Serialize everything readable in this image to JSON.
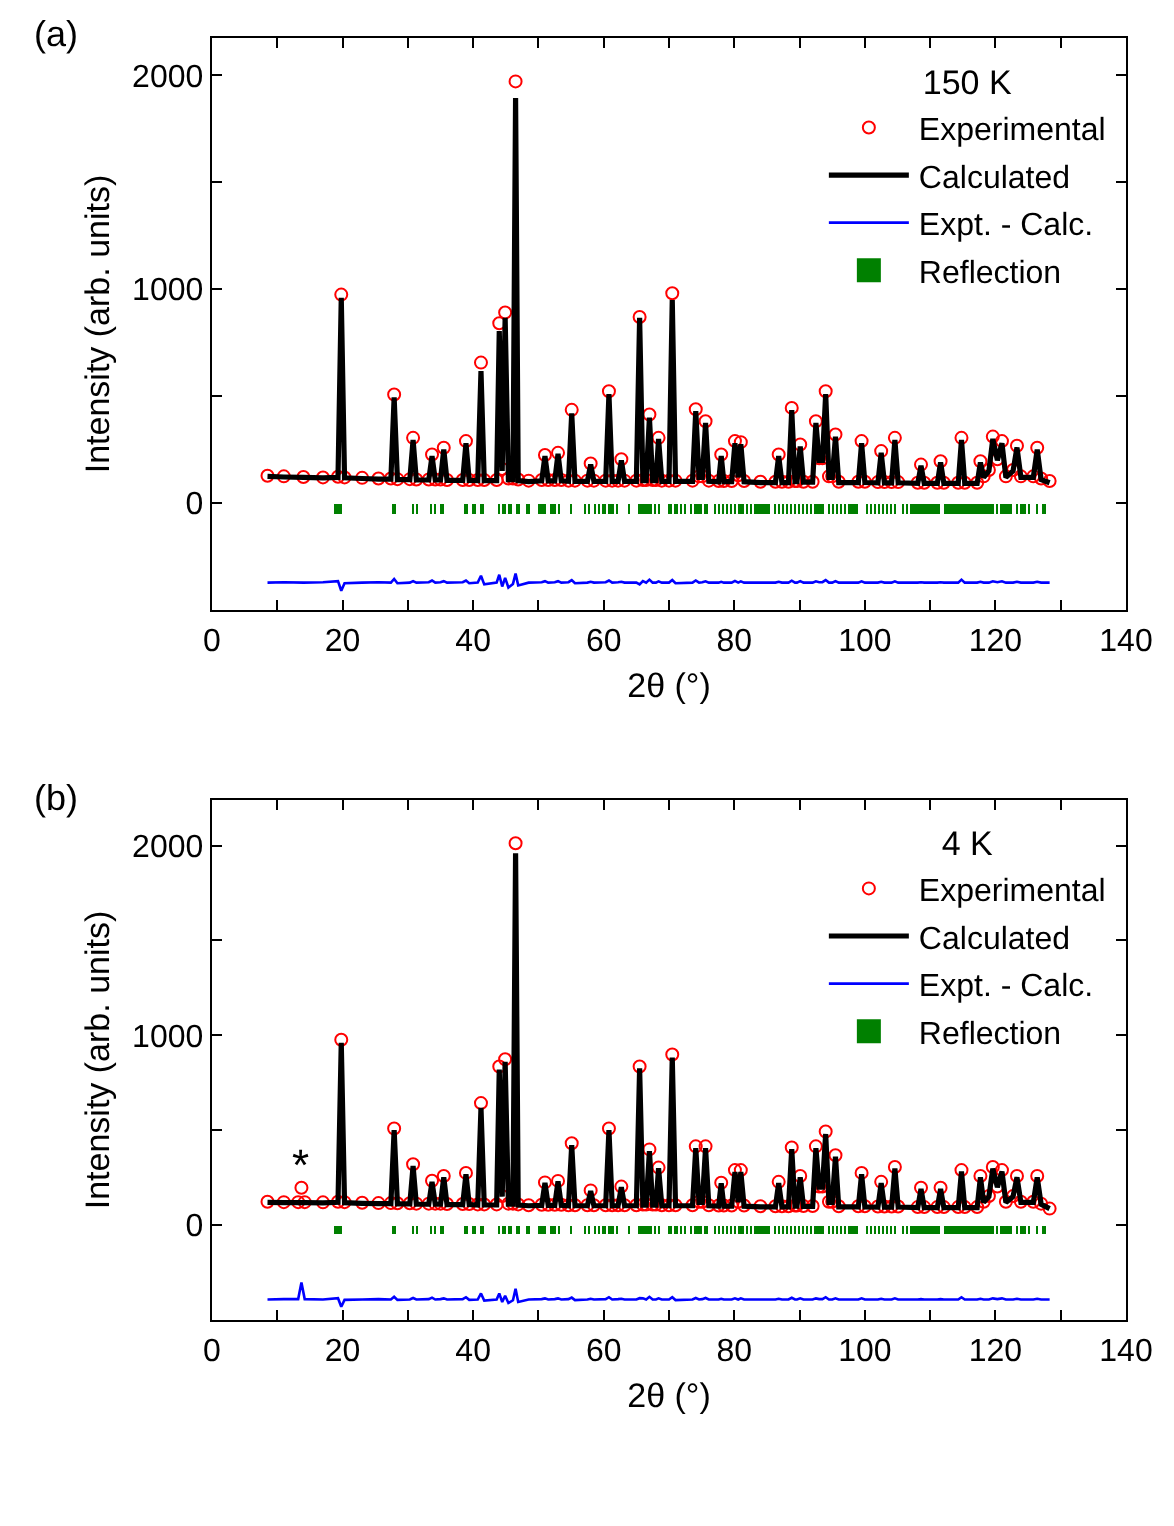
{
  "chart_data": [
    {
      "type": "line",
      "annotations": [
        "(a)"
      ],
      "legend_title": "150 K",
      "legend": "top right",
      "xlabel": "2θ (°)",
      "ylabel": "Intensity (arb. units)",
      "xlim": [
        0,
        140
      ],
      "ylim": [
        -500,
        2175
      ],
      "xticks": [
        0,
        {
          "value": 10,
          "label": null
        },
        20,
        {
          "value": 30,
          "label": null
        },
        40,
        {
          "value": 50,
          "label": null
        },
        60,
        {
          "value": 70,
          "label": null
        },
        80,
        {
          "value": 90,
          "label": null
        },
        100,
        {
          "value": 110,
          "label": null
        },
        120,
        {
          "value": 130,
          "label": null
        },
        140
      ],
      "yticks": [
        0,
        1000,
        2000
      ],
      "x": [
        8.5,
        11,
        14,
        17,
        19.3,
        19.8,
        20.3,
        23,
        25.5,
        27.4,
        27.9,
        28.4,
        30.3,
        30.8,
        31.3,
        33.2,
        33.7,
        34.2,
        35.0,
        35.5,
        36.0,
        38.4,
        38.9,
        39.4,
        40.7,
        41.2,
        41.7,
        43.6,
        44.0,
        44.45,
        44.9,
        45.4,
        46.1,
        46.5,
        46.9,
        48.5,
        50.5,
        51.0,
        51.5,
        52.5,
        53.0,
        53.5,
        54.6,
        55.1,
        55.6,
        57.5,
        58.0,
        58.5,
        60.3,
        60.8,
        61.3,
        62.2,
        62.7,
        63.2,
        65.0,
        65.5,
        66.0,
        66.5,
        67.0,
        67.5,
        68.0,
        68.4,
        68.9,
        70.0,
        70.5,
        71.0,
        73.6,
        74.1,
        74.6,
        75.1,
        75.6,
        76.1,
        77.6,
        78.0,
        78.4,
        79.6,
        80.1,
        80.6,
        81.0,
        81.5,
        84.0,
        86.3,
        86.8,
        87.3,
        88.3,
        88.8,
        89.3,
        89.6,
        90.1,
        90.6,
        92.0,
        92.5,
        93.0,
        93.5,
        94.0,
        94.5,
        95.0,
        95.5,
        96.0,
        99.0,
        99.5,
        100.0,
        102.0,
        102.5,
        103.0,
        104.1,
        104.6,
        105.1,
        108.1,
        108.6,
        109.1,
        111.1,
        111.6,
        112.1,
        114.3,
        114.8,
        115.3,
        117.2,
        117.7,
        118.2,
        119.0,
        119.6,
        120.3,
        121.0,
        121.6,
        122.7,
        123.3,
        123.9,
        125.8,
        126.4,
        127.0,
        128.3
      ],
      "series": [
        {
          "name": "Experimental",
          "type": "scatter",
          "marker": "circle",
          "color": "#ff0000",
          "values": [
            128,
            125,
            122,
            120,
            123,
            975,
            120,
            118,
            115,
            115,
            508,
            112,
            112,
            305,
            110,
            110,
            227,
            110,
            110,
            259,
            108,
            108,
            290,
            108,
            108,
            657,
            108,
            108,
            841,
            160,
            891,
            115,
            115,
            1972,
            110,
            105,
            108,
            225,
            108,
            108,
            235,
            108,
            105,
            436,
            105,
            105,
            185,
            105,
            105,
            523,
            105,
            105,
            205,
            105,
            105,
            870,
            108,
            108,
            414,
            108,
            108,
            305,
            105,
            105,
            981,
            105,
            105,
            439,
            125,
            125,
            383,
            105,
            103,
            227,
            103,
            103,
            290,
            130,
            285,
            103,
            100,
            100,
            227,
            100,
            100,
            445,
            103,
            103,
            274,
            100,
            100,
            383,
            210,
            210,
            523,
            125,
            125,
            321,
            100,
            100,
            290,
            100,
            98,
            243,
            98,
            98,
            305,
            98,
            95,
            180,
            95,
            95,
            196,
            95,
            95,
            305,
            95,
            95,
            196,
            125,
            155,
            311,
            205,
            290,
            125,
            155,
            268,
            125,
            125,
            259,
            115,
            103
          ]
        },
        {
          "name": "Calculated",
          "color": "#000000",
          "values": [
            125,
            122,
            120,
            118,
            120,
            960,
            118,
            115,
            112,
            112,
            495,
            110,
            110,
            295,
            108,
            108,
            220,
            108,
            108,
            250,
            106,
            106,
            280,
            106,
            105,
            617,
            105,
            105,
            804,
            150,
            866,
            110,
            110,
            1894,
            105,
            100,
            104,
            220,
            104,
            104,
            230,
            104,
            102,
            420,
            102,
            102,
            180,
            102,
            102,
            510,
            102,
            102,
            200,
            102,
            102,
            866,
            105,
            105,
            400,
            105,
            105,
            300,
            102,
            102,
            950,
            102,
            102,
            430,
            120,
            120,
            375,
            102,
            100,
            220,
            100,
            100,
            280,
            120,
            275,
            100,
            96,
            96,
            220,
            96,
            96,
            435,
            100,
            100,
            265,
            98,
            98,
            375,
            200,
            200,
            510,
            120,
            120,
            310,
            96,
            96,
            280,
            96,
            95,
            235,
            95,
            95,
            295,
            95,
            92,
            175,
            92,
            92,
            190,
            92,
            92,
            295,
            92,
            92,
            190,
            120,
            150,
            300,
            200,
            280,
            120,
            150,
            260,
            120,
            120,
            250,
            110,
            95
          ]
        },
        {
          "name": "Expt. - Calc.",
          "color": "#0000ff",
          "values": [
            -372,
            -370,
            -372,
            -370,
            -365,
            -410,
            -375,
            -372,
            -370,
            -372,
            -355,
            -375,
            -372,
            -365,
            -372,
            -370,
            -362,
            -372,
            -370,
            -365,
            -372,
            -370,
            -362,
            -375,
            -372,
            -340,
            -380,
            -372,
            -335,
            -390,
            -350,
            -395,
            -378,
            -330,
            -385,
            -372,
            -370,
            -365,
            -372,
            -370,
            -365,
            -372,
            -370,
            -360,
            -375,
            -372,
            -368,
            -372,
            -370,
            -362,
            -372,
            -370,
            -368,
            -372,
            -372,
            -380,
            -365,
            -372,
            -358,
            -372,
            -372,
            -366,
            -372,
            -372,
            -360,
            -375,
            -372,
            -362,
            -372,
            -370,
            -366,
            -372,
            -372,
            -368,
            -372,
            -372,
            -364,
            -372,
            -366,
            -372,
            -372,
            -372,
            -368,
            -372,
            -372,
            -363,
            -372,
            -372,
            -365,
            -372,
            -372,
            -366,
            -370,
            -370,
            -360,
            -372,
            -372,
            -365,
            -372,
            -372,
            -366,
            -372,
            -372,
            -368,
            -372,
            -372,
            -366,
            -372,
            -372,
            -370,
            -372,
            -372,
            -370,
            -372,
            -372,
            -358,
            -372,
            -372,
            -368,
            -372,
            -372,
            -366,
            -370,
            -366,
            -372,
            -372,
            -368,
            -372,
            -372,
            -368,
            -372,
            -372
          ]
        },
        {
          "name": "Reflection",
          "type": "bar",
          "color": "#008000",
          "x": [
            18.8,
            19.3,
            19.8,
            27.8,
            30.8,
            31.4,
            33.5,
            34.1,
            35.3,
            38.9,
            40.2,
            41.4,
            44.0,
            44.7,
            45.7,
            46.9,
            48.4,
            50.3,
            50.8,
            52.1,
            52.6,
            53.2,
            55.0,
            57.2,
            57.7,
            58.6,
            59.3,
            60.0,
            60.8,
            61.3,
            62.0,
            63.9,
            65.4,
            65.9,
            66.5,
            67.1,
            67.9,
            68.4,
            70.2,
            71.0,
            71.8,
            72.5,
            73.3,
            74.1,
            74.8,
            75.6,
            77.0,
            77.6,
            78.2,
            78.9,
            79.5,
            80.1,
            80.8,
            81.4,
            82.0,
            82.6,
            83.3,
            83.9,
            84.5,
            85.1,
            86.3,
            86.9,
            87.5,
            88.1,
            88.7,
            89.3,
            89.9,
            90.5,
            91.1,
            91.7,
            92.3,
            92.9,
            93.5,
            94.5,
            95.1,
            95.7,
            96.3,
            96.9,
            97.5,
            98.1,
            98.7,
            100.4,
            101.0,
            101.6,
            102.2,
            102.8,
            103.4,
            104.0,
            104.6,
            105.8,
            106.4,
            107.0,
            107.6,
            108.2,
            108.8,
            109.4,
            110.0,
            110.6,
            111.2,
            112.5,
            113.1,
            113.7,
            114.3,
            114.9,
            115.5,
            116.1,
            116.7,
            117.3,
            117.9,
            118.5,
            119.1,
            119.7,
            120.3,
            121.0,
            121.6,
            122.2,
            123.3,
            124.0,
            124.6,
            125.2,
            126.4,
            127.5
          ],
          "base": [
            -50,
            -50,
            -50,
            -50,
            -50,
            -50,
            -50,
            -50,
            -50,
            -50,
            -50,
            -50,
            -50,
            -50,
            -50,
            -50,
            -50,
            -50,
            -50,
            -50,
            -50,
            -50,
            -50,
            -50,
            -50,
            -50,
            -50,
            -50,
            -50,
            -50,
            -50,
            -50,
            -50,
            -50,
            -50,
            -50,
            -50,
            -50,
            -50,
            -50,
            -50,
            -50,
            -50,
            -50,
            -50,
            -50,
            -50,
            -50,
            -50,
            -50,
            -50,
            -50,
            -50,
            -50,
            -50,
            -50,
            -50,
            -50,
            -50,
            -50,
            -50,
            -50,
            -50,
            -50,
            -50,
            -50,
            -50,
            -50,
            -50,
            -50,
            -50,
            -50,
            -50,
            -50,
            -50,
            -50,
            -50,
            -50,
            -50,
            -50,
            -50,
            -50,
            -50,
            -50,
            -50,
            -50,
            -50,
            -50,
            -50,
            -50,
            -50,
            -50,
            -50,
            -50,
            -50,
            -50,
            -50,
            -50,
            -50,
            -50,
            -50,
            -50,
            -50,
            -50,
            -50,
            -50,
            -50,
            -50,
            -50,
            -50,
            -50,
            -50,
            -50,
            -50,
            -50,
            -50,
            -50,
            -50,
            -50,
            -50,
            -50,
            -50
          ],
          "values": [
            50,
            50,
            50,
            50,
            50,
            50,
            50,
            50,
            50,
            50,
            50,
            50,
            50,
            50,
            50,
            50,
            50,
            50,
            50,
            50,
            50,
            50,
            50,
            50,
            50,
            50,
            50,
            50,
            50,
            50,
            50,
            50,
            50,
            50,
            50,
            50,
            50,
            50,
            50,
            50,
            50,
            50,
            50,
            50,
            50,
            50,
            50,
            50,
            50,
            50,
            50,
            50,
            50,
            50,
            50,
            50,
            50,
            50,
            50,
            50,
            50,
            50,
            50,
            50,
            50,
            50,
            50,
            50,
            50,
            50,
            50,
            50,
            50,
            50,
            50,
            50,
            50,
            50,
            50,
            50,
            50,
            50,
            50,
            50,
            50,
            50,
            50,
            50,
            50,
            50,
            50,
            50,
            50,
            50,
            50,
            50,
            50,
            50,
            50,
            50,
            50,
            50,
            50,
            50,
            50,
            50,
            50,
            50,
            50,
            50,
            50,
            50,
            50,
            50,
            50,
            50,
            50,
            50,
            50,
            50,
            50,
            50
          ]
        }
      ]
    },
    {
      "type": "line",
      "annotations": [
        "(b)",
        "*"
      ],
      "legend_title": "4 K",
      "legend": "top right",
      "xlabel": "2θ (°)",
      "ylabel": "Intensity (arb. units)",
      "xlim": [
        0,
        140
      ],
      "ylim": [
        -500,
        2240
      ],
      "xticks": [
        0,
        {
          "value": 10,
          "label": null
        },
        20,
        {
          "value": 30,
          "label": null
        },
        40,
        {
          "value": 50,
          "label": null
        },
        60,
        {
          "value": 70,
          "label": null
        },
        80,
        {
          "value": 90,
          "label": null
        },
        100,
        {
          "value": 110,
          "label": null
        },
        120,
        {
          "value": 130,
          "label": null
        },
        140
      ],
      "yticks": [
        0,
        1000,
        2000
      ],
      "x": [
        8.5,
        11,
        13.2,
        13.7,
        14.2,
        17,
        19.3,
        19.8,
        20.3,
        23,
        25.5,
        27.4,
        27.9,
        28.4,
        30.3,
        30.8,
        31.3,
        33.2,
        33.7,
        34.2,
        35.0,
        35.5,
        36.0,
        38.4,
        38.9,
        39.4,
        40.7,
        41.2,
        41.7,
        43.6,
        44.0,
        44.45,
        44.9,
        45.4,
        46.1,
        46.5,
        46.9,
        48.5,
        50.5,
        51.0,
        51.5,
        52.5,
        53.0,
        53.5,
        54.6,
        55.1,
        55.6,
        57.5,
        58.0,
        58.5,
        60.3,
        60.8,
        61.3,
        62.2,
        62.7,
        63.2,
        65.0,
        65.5,
        66.0,
        66.5,
        67.0,
        67.5,
        68.0,
        68.4,
        68.9,
        70.0,
        70.5,
        71.0,
        73.6,
        74.1,
        74.6,
        75.1,
        75.6,
        76.1,
        77.6,
        78.0,
        78.4,
        79.6,
        80.1,
        80.6,
        81.0,
        81.5,
        84.0,
        86.3,
        86.8,
        87.3,
        88.3,
        88.8,
        89.3,
        89.6,
        90.1,
        90.6,
        92.0,
        92.5,
        93.0,
        93.5,
        94.0,
        94.5,
        95.0,
        95.5,
        96.0,
        99.0,
        99.5,
        100.0,
        102.0,
        102.5,
        103.0,
        104.1,
        104.6,
        105.1,
        108.1,
        108.6,
        109.1,
        111.1,
        111.6,
        112.1,
        114.3,
        114.8,
        115.3,
        117.2,
        117.7,
        118.2,
        119.0,
        119.6,
        120.3,
        121.0,
        121.6,
        122.7,
        123.3,
        123.9,
        125.8,
        126.4,
        127.0,
        128.3
      ],
      "series": [
        {
          "name": "Experimental",
          "type": "scatter",
          "marker": "circle",
          "color": "#ff0000",
          "values": [
            123,
            121,
            121,
            197,
            121,
            120,
            123,
            977,
            121,
            118,
            116,
            116,
            509,
            115,
            115,
            321,
            113,
            113,
            234,
            113,
            113,
            259,
            111,
            111,
            275,
            111,
            109,
            643,
            109,
            109,
            836,
            153,
            874,
            113,
            113,
            2012,
            109,
            105,
            107,
            225,
            107,
            107,
            233,
            107,
            105,
            431,
            105,
            105,
            183,
            105,
            105,
            509,
            105,
            105,
            203,
            105,
            105,
            836,
            108,
            108,
            399,
            108,
            108,
            303,
            105,
            105,
            899,
            105,
            105,
            415,
            123,
            123,
            415,
            105,
            103,
            223,
            103,
            103,
            290,
            123,
            290,
            103,
            99,
            99,
            228,
            99,
            99,
            409,
            103,
            103,
            259,
            101,
            101,
            415,
            203,
            203,
            493,
            123,
            123,
            368,
            99,
            99,
            275,
            99,
            98,
            228,
            98,
            98,
            306,
            98,
            95,
            197,
            95,
            95,
            197,
            95,
            95,
            290,
            95,
            95,
            259,
            123,
            153,
            306,
            203,
            290,
            123,
            153,
            259,
            123,
            123,
            259,
            113,
            87
          ]
        },
        {
          "name": "Calculated",
          "color": "#000000",
          "values": [
            120,
            118,
            118,
            118,
            118,
            117,
            120,
            960,
            118,
            115,
            113,
            113,
            500,
            112,
            112,
            312,
            110,
            110,
            228,
            110,
            110,
            252,
            108,
            108,
            268,
            108,
            106,
            618,
            106,
            106,
            820,
            150,
            860,
            110,
            110,
            1959,
            106,
            102,
            104,
            222,
            104,
            104,
            230,
            104,
            102,
            422,
            102,
            102,
            180,
            102,
            102,
            500,
            102,
            102,
            200,
            102,
            102,
            826,
            105,
            105,
            390,
            105,
            105,
            300,
            102,
            102,
            883,
            102,
            102,
            405,
            120,
            120,
            405,
            102,
            100,
            220,
            100,
            100,
            280,
            120,
            280,
            100,
            96,
            96,
            222,
            96,
            96,
            400,
            100,
            100,
            252,
            98,
            98,
            405,
            200,
            200,
            480,
            120,
            120,
            360,
            96,
            96,
            268,
            96,
            95,
            222,
            95,
            95,
            298,
            95,
            92,
            190,
            92,
            92,
            190,
            92,
            92,
            282,
            92,
            92,
            252,
            120,
            150,
            298,
            200,
            282,
            120,
            150,
            252,
            120,
            120,
            252,
            110,
            87
          ]
        },
        {
          "name": "Expt. - Calc.",
          "color": "#0000ff",
          "values": [
            -392,
            -390,
            -390,
            -303,
            -390,
            -392,
            -385,
            -430,
            -394,
            -392,
            -390,
            -392,
            -378,
            -394,
            -392,
            -384,
            -392,
            -390,
            -382,
            -392,
            -390,
            -386,
            -392,
            -390,
            -380,
            -394,
            -392,
            -360,
            -398,
            -392,
            -360,
            -405,
            -372,
            -410,
            -396,
            -335,
            -405,
            -392,
            -390,
            -386,
            -392,
            -390,
            -386,
            -392,
            -390,
            -382,
            -395,
            -392,
            -388,
            -392,
            -390,
            -380,
            -392,
            -390,
            -388,
            -392,
            -392,
            -385,
            -386,
            -392,
            -378,
            -392,
            -392,
            -386,
            -392,
            -392,
            -380,
            -395,
            -392,
            -384,
            -392,
            -390,
            -384,
            -392,
            -392,
            -388,
            -392,
            -392,
            -386,
            -392,
            -386,
            -392,
            -392,
            -392,
            -388,
            -392,
            -392,
            -383,
            -392,
            -392,
            -386,
            -392,
            -392,
            -386,
            -390,
            -390,
            -380,
            -392,
            -392,
            -386,
            -392,
            -392,
            -386,
            -392,
            -392,
            -388,
            -392,
            -392,
            -386,
            -392,
            -392,
            -390,
            -392,
            -392,
            -390,
            -392,
            -392,
            -380,
            -392,
            -392,
            -388,
            -392,
            -392,
            -386,
            -390,
            -386,
            -392,
            -392,
            -388,
            -392,
            -392,
            -388,
            -392,
            -392
          ]
        },
        {
          "name": "Reflection",
          "type": "bar",
          "color": "#008000",
          "x": [
            18.8,
            19.3,
            19.8,
            27.8,
            30.8,
            31.4,
            33.5,
            34.1,
            35.3,
            38.9,
            40.2,
            41.4,
            44.0,
            44.7,
            45.7,
            46.9,
            48.4,
            50.3,
            50.8,
            52.1,
            52.6,
            53.2,
            55.0,
            57.2,
            57.7,
            58.6,
            59.3,
            60.0,
            60.8,
            61.3,
            62.0,
            63.9,
            65.4,
            65.9,
            66.5,
            67.1,
            67.9,
            68.4,
            70.2,
            71.0,
            71.8,
            72.5,
            73.3,
            74.1,
            74.8,
            75.6,
            77.0,
            77.6,
            78.2,
            78.9,
            79.5,
            80.1,
            80.8,
            81.4,
            82.0,
            82.6,
            83.3,
            83.9,
            84.5,
            85.1,
            86.3,
            86.9,
            87.5,
            88.1,
            88.7,
            89.3,
            89.9,
            90.5,
            91.1,
            91.7,
            92.3,
            92.9,
            93.5,
            94.5,
            95.1,
            95.7,
            96.3,
            96.9,
            97.5,
            98.1,
            98.7,
            100.4,
            101.0,
            101.6,
            102.2,
            102.8,
            103.4,
            104.0,
            104.6,
            105.8,
            106.4,
            107.0,
            107.6,
            108.2,
            108.8,
            109.4,
            110.0,
            110.6,
            111.2,
            112.5,
            113.1,
            113.7,
            114.3,
            114.9,
            115.5,
            116.1,
            116.7,
            117.3,
            117.9,
            118.5,
            119.1,
            119.7,
            120.3,
            121.0,
            121.6,
            122.2,
            123.3,
            124.0,
            124.6,
            125.2,
            126.4,
            127.5
          ],
          "base": [
            -50,
            -50,
            -50,
            -50,
            -50,
            -50,
            -50,
            -50,
            -50,
            -50,
            -50,
            -50,
            -50,
            -50,
            -50,
            -50,
            -50,
            -50,
            -50,
            -50,
            -50,
            -50,
            -50,
            -50,
            -50,
            -50,
            -50,
            -50,
            -50,
            -50,
            -50,
            -50,
            -50,
            -50,
            -50,
            -50,
            -50,
            -50,
            -50,
            -50,
            -50,
            -50,
            -50,
            -50,
            -50,
            -50,
            -50,
            -50,
            -50,
            -50,
            -50,
            -50,
            -50,
            -50,
            -50,
            -50,
            -50,
            -50,
            -50,
            -50,
            -50,
            -50,
            -50,
            -50,
            -50,
            -50,
            -50,
            -50,
            -50,
            -50,
            -50,
            -50,
            -50,
            -50,
            -50,
            -50,
            -50,
            -50,
            -50,
            -50,
            -50,
            -50,
            -50,
            -50,
            -50,
            -50,
            -50,
            -50,
            -50,
            -50,
            -50,
            -50,
            -50,
            -50,
            -50,
            -50,
            -50,
            -50,
            -50,
            -50,
            -50,
            -50,
            -50,
            -50,
            -50,
            -50,
            -50,
            -50,
            -50,
            -50,
            -50,
            -50,
            -50,
            -50,
            -50,
            -50,
            -50,
            -50,
            -50,
            -50,
            -50,
            -50
          ],
          "values": [
            50,
            50,
            50,
            50,
            50,
            50,
            50,
            50,
            50,
            50,
            50,
            50,
            50,
            50,
            50,
            50,
            50,
            50,
            50,
            50,
            50,
            50,
            50,
            50,
            50,
            50,
            50,
            50,
            50,
            50,
            50,
            50,
            50,
            50,
            50,
            50,
            50,
            50,
            50,
            50,
            50,
            50,
            50,
            50,
            50,
            50,
            50,
            50,
            50,
            50,
            50,
            50,
            50,
            50,
            50,
            50,
            50,
            50,
            50,
            50,
            50,
            50,
            50,
            50,
            50,
            50,
            50,
            50,
            50,
            50,
            50,
            50,
            50,
            50,
            50,
            50,
            50,
            50,
            50,
            50,
            50,
            50,
            50,
            50,
            50,
            50,
            50,
            50,
            50,
            50,
            50,
            50,
            50,
            50,
            50,
            50,
            50,
            50,
            50,
            50,
            50,
            50,
            50,
            50,
            50,
            50,
            50,
            50,
            50,
            50,
            50,
            50,
            50,
            50,
            50,
            50,
            50,
            50,
            50,
            50,
            50,
            50
          ]
        }
      ]
    }
  ]
}
